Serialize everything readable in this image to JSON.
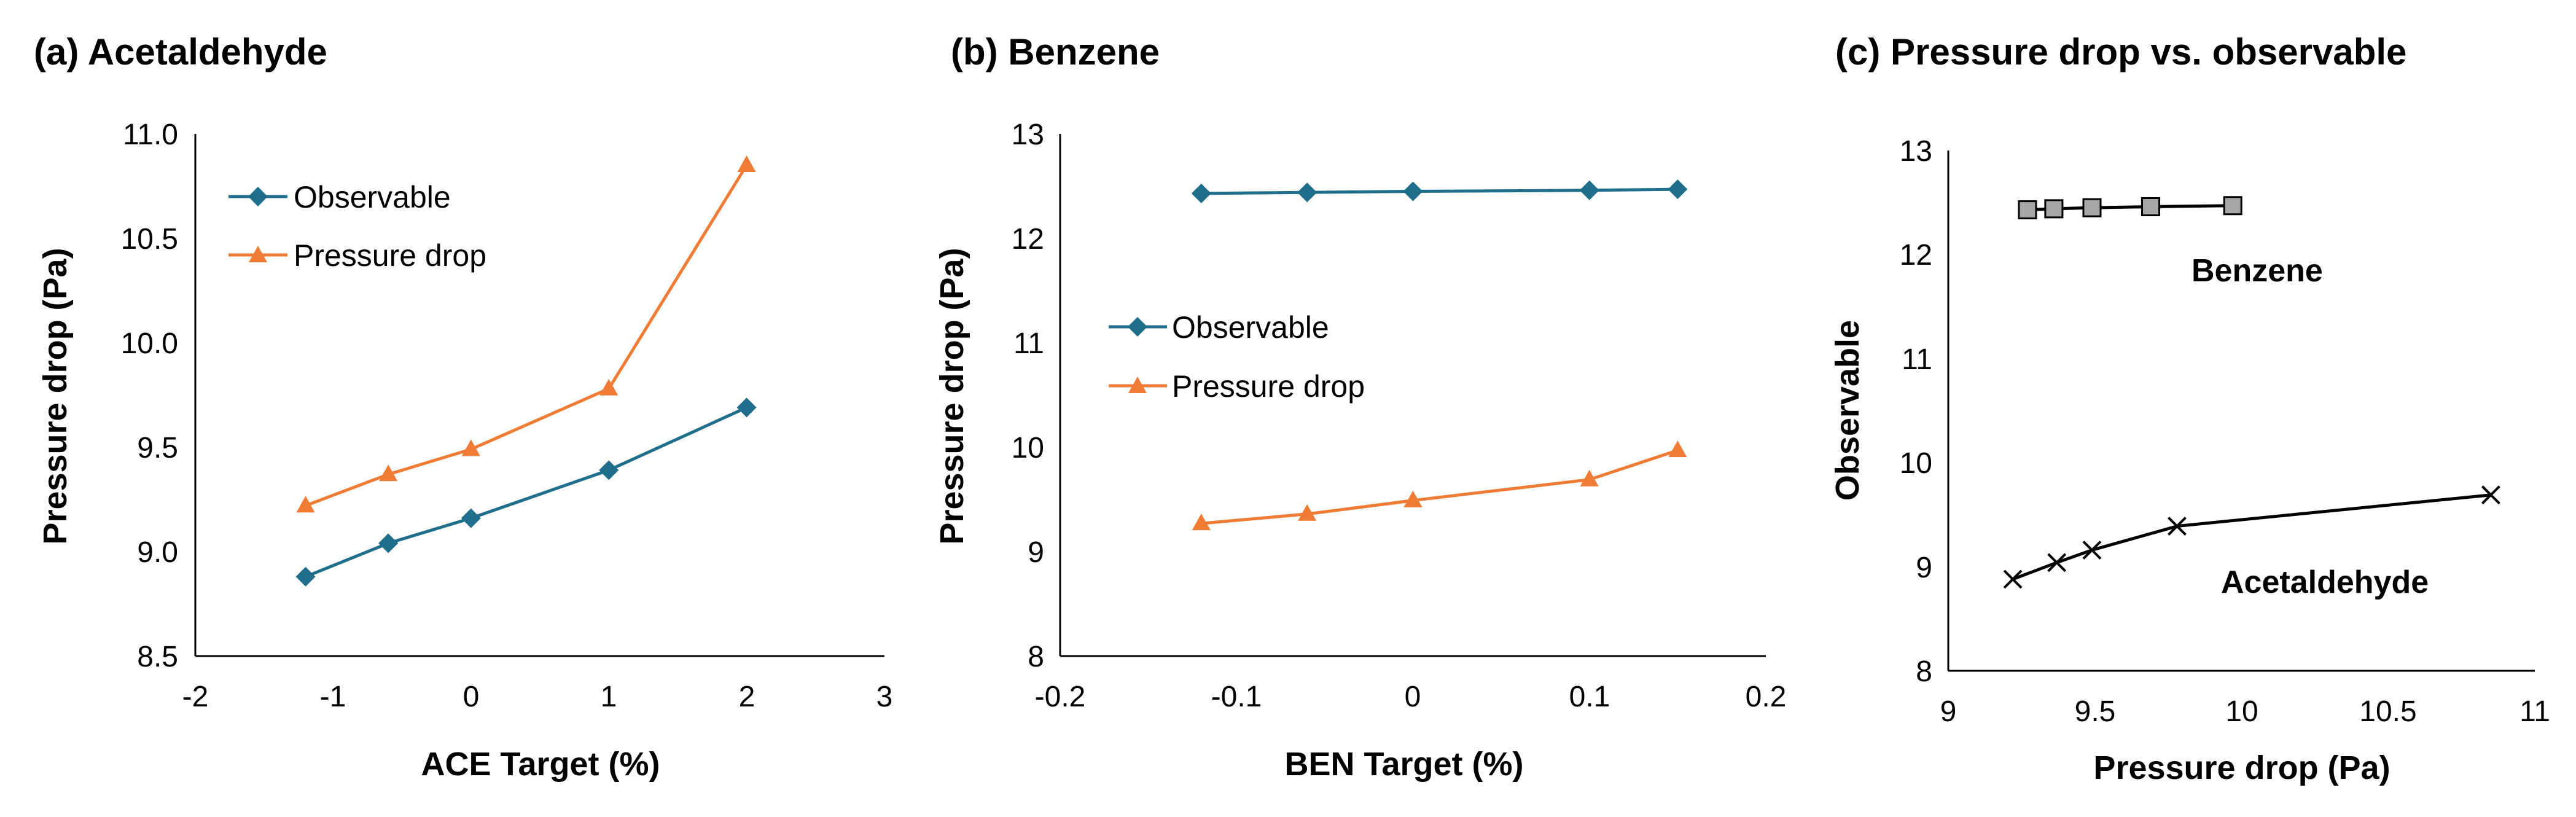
{
  "colors": {
    "observable": "#1F6E8C",
    "pressure_drop": "#F07B34",
    "panel_c_line": "#000000",
    "benzene_marker_fill": "#A6A6A6",
    "axis": "#000000"
  },
  "chart_data": [
    {
      "id": "a",
      "type": "line",
      "title": "(a) Acetaldehyde",
      "xlabel": "ACE Target (%)",
      "ylabel": "Pressure drop (Pa)",
      "xlim": [
        -2,
        3
      ],
      "ylim": [
        8.5,
        11.0
      ],
      "xticks": [
        "-2",
        "-1",
        "0",
        "1",
        "2",
        "3"
      ],
      "yticks": [
        "8.5",
        "9.0",
        "9.5",
        "10.0",
        "10.5",
        "11.0"
      ],
      "legend_position": "top-left",
      "series": [
        {
          "name": "Observable",
          "marker": "diamond",
          "color_key": "observable",
          "x": [
            -1.2,
            -0.6,
            0,
            1,
            2
          ],
          "y": [
            8.88,
            9.04,
            9.16,
            9.39,
            9.69
          ]
        },
        {
          "name": "Pressure drop",
          "marker": "triangle",
          "color_key": "pressure_drop",
          "x": [
            -1.2,
            -0.6,
            0,
            1,
            2
          ],
          "y": [
            9.22,
            9.37,
            9.49,
            9.78,
            10.85
          ]
        }
      ]
    },
    {
      "id": "b",
      "type": "line",
      "title": "(b) Benzene",
      "xlabel": "BEN Target (%)",
      "ylabel": "Pressure drop (Pa)",
      "xlim": [
        -0.2,
        0.2
      ],
      "ylim": [
        8,
        13
      ],
      "xticks": [
        "-0.2",
        "-0.1",
        "0",
        "0.1",
        "0.2"
      ],
      "yticks": [
        "8",
        "9",
        "10",
        "11",
        "12",
        "13"
      ],
      "legend_position": "middle-left",
      "series": [
        {
          "name": "Observable",
          "marker": "diamond",
          "color_key": "observable",
          "x": [
            -0.12,
            -0.06,
            0,
            0.1,
            0.15
          ],
          "y": [
            12.43,
            12.44,
            12.45,
            12.46,
            12.47
          ]
        },
        {
          "name": "Pressure drop",
          "marker": "triangle",
          "color_key": "pressure_drop",
          "x": [
            -0.12,
            -0.06,
            0,
            0.1,
            0.15
          ],
          "y": [
            9.27,
            9.36,
            9.49,
            9.69,
            9.97
          ]
        }
      ]
    },
    {
      "id": "c",
      "type": "line",
      "title": "(c) Pressure drop vs. observable",
      "xlabel": "Pressure drop (Pa)",
      "ylabel": "Observable",
      "xlim": [
        9,
        11
      ],
      "ylim": [
        8,
        13
      ],
      "xticks": [
        "9",
        "9.5",
        "10",
        "10.5",
        "11"
      ],
      "yticks": [
        "8",
        "9",
        "10",
        "11",
        "12",
        "13"
      ],
      "annotations": [
        "Benzene",
        "Acetaldehyde"
      ],
      "series": [
        {
          "name": "Benzene",
          "marker": "square",
          "color_key": "panel_c_line",
          "x": [
            9.27,
            9.36,
            9.49,
            9.69,
            9.97
          ],
          "y": [
            12.43,
            12.44,
            12.45,
            12.46,
            12.47
          ]
        },
        {
          "name": "Acetaldehyde",
          "marker": "x",
          "color_key": "panel_c_line",
          "x": [
            9.22,
            9.37,
            9.49,
            9.78,
            10.85
          ],
          "y": [
            8.88,
            9.04,
            9.16,
            9.39,
            9.69
          ]
        }
      ]
    }
  ]
}
